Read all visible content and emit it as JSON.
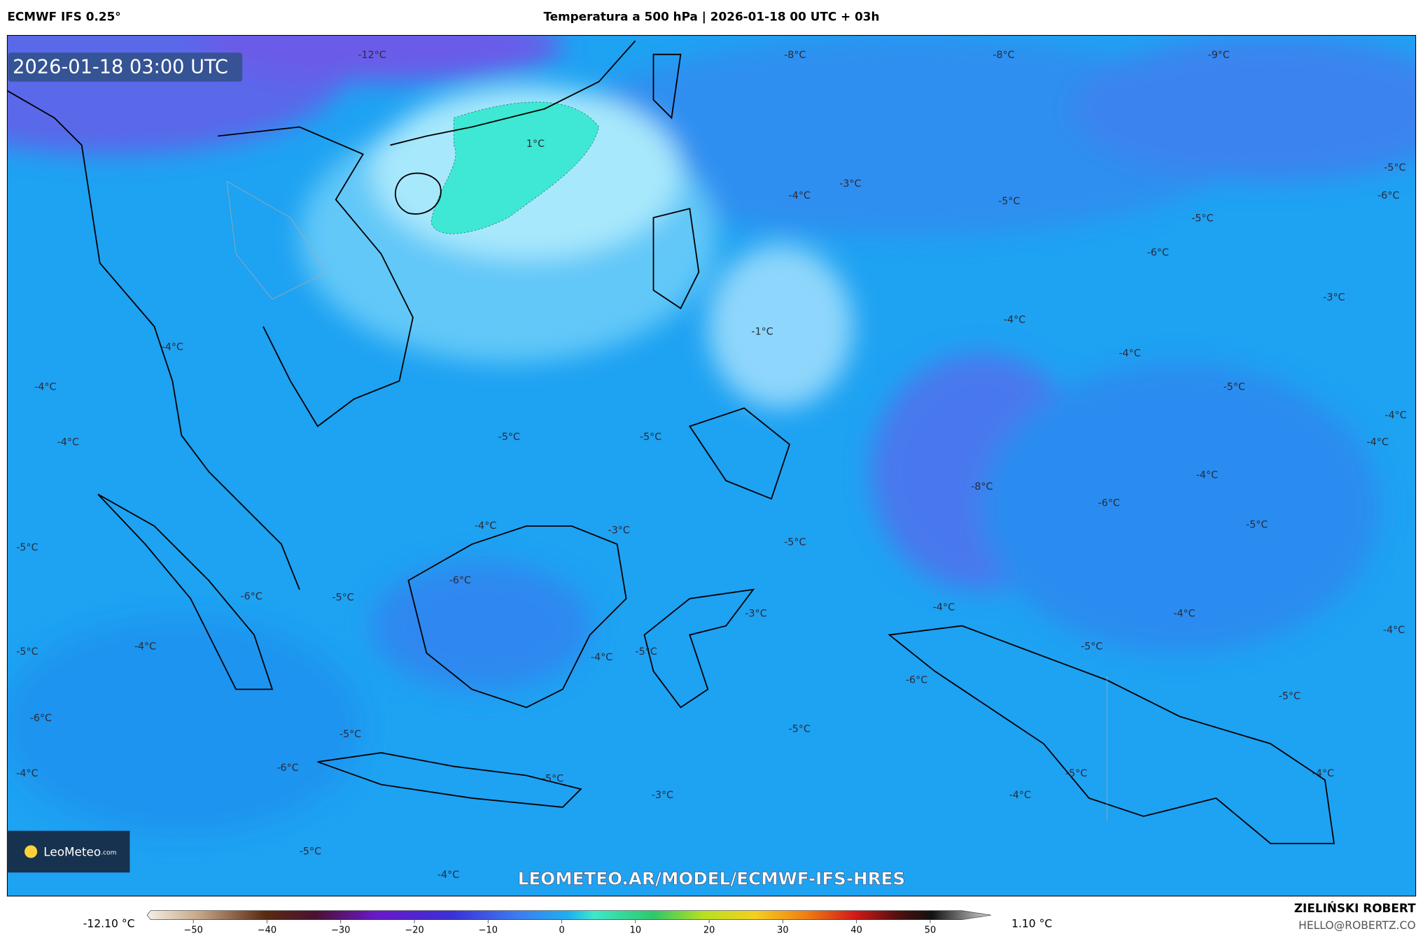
{
  "header": {
    "model": "ECMWF IFS 0.25°",
    "title": "Temperatura a 500 hPa | 2026-01-18 00 UTC + 03h"
  },
  "map": {
    "timestamp": "2026-01-18 03:00 UTC",
    "logo": "LeoMeteo",
    "logo_suffix": ".com",
    "watermark": "LEOMETEO.AR/MODEL/ECMWF-IFS-HRES",
    "labels": [
      "-12°C",
      "-8°C",
      "-8°C",
      "-9°C",
      "1°C",
      "-3°C",
      "-4°C",
      "-5°C",
      "-5°C",
      "-6°C",
      "-5°C",
      "-6°C",
      "-3°C",
      "-4°C",
      "-1°C",
      "-4°C",
      "-4°C",
      "-4°C",
      "-5°C",
      "-4°C",
      "-5°C",
      "-5°C",
      "-4°C",
      "-4°C",
      "-4°C",
      "-8°C",
      "-6°C",
      "-4°C",
      "-3°C",
      "-5°C",
      "-5°C",
      "-5°C",
      "-6°C",
      "-6°C",
      "-5°C",
      "-3°C",
      "-4°C",
      "-4°C",
      "-4°C",
      "-5°C",
      "-4°C",
      "-4°C",
      "-5°C",
      "-5°C",
      "-6°C",
      "-5°C",
      "-6°C",
      "-5°C",
      "-5°C",
      "-4°C",
      "-6°C",
      "-5°C",
      "-4°C",
      "-5°C",
      "-3°C",
      "-4°C",
      "-5°C",
      "-4°C"
    ]
  },
  "colorbar": {
    "min_label": "-12.10 °C",
    "max_label": "1.10 °C",
    "ticks": [
      {
        "value": -50,
        "label": "−50"
      },
      {
        "value": -40,
        "label": "−40"
      },
      {
        "value": -30,
        "label": "−30"
      },
      {
        "value": -20,
        "label": "−20"
      },
      {
        "value": -10,
        "label": "−10"
      },
      0,
      10,
      20,
      30,
      40,
      50
    ]
  },
  "footer": {
    "author": "ZIELIŃSKI ROBERT",
    "email": "HELLO@ROBERTZ.CO"
  }
}
